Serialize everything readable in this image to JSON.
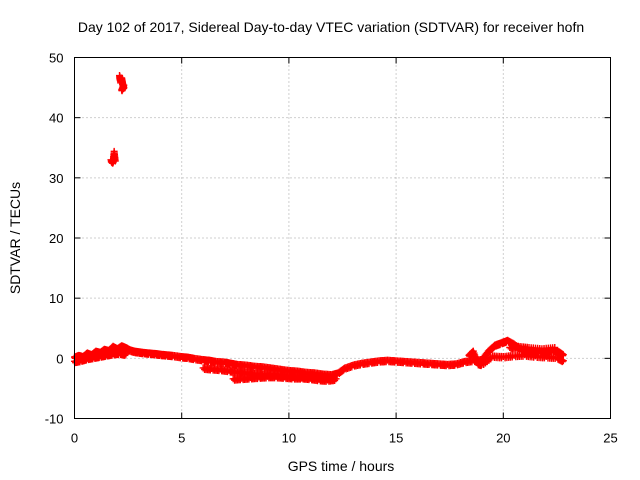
{
  "chart_data": {
    "type": "scatter",
    "title": "Day 102 of 2017, Sidereal Day-to-day VTEC variation (SDTVAR) for receiver hofn",
    "xlabel": "GPS time / hours",
    "ylabel": "SDTVAR / TECUs",
    "xlim": [
      0,
      25
    ],
    "ylim": [
      -10,
      50
    ],
    "xticks": [
      "0",
      "5",
      "10",
      "15",
      "20",
      "25"
    ],
    "yticks": [
      "-10",
      "0",
      "10",
      "20",
      "30",
      "40",
      "50"
    ],
    "grid": true,
    "marker": "+",
    "color": "#ff0000",
    "series": [
      {
        "name": "SDTVAR",
        "points": [
          [
            0.0,
            0.2
          ],
          [
            0.2,
            0.5
          ],
          [
            0.4,
            0.3
          ],
          [
            0.6,
            0.9
          ],
          [
            0.8,
            0.6
          ],
          [
            1.0,
            1.2
          ],
          [
            1.2,
            1.0
          ],
          [
            1.4,
            1.5
          ],
          [
            1.6,
            1.3
          ],
          [
            1.8,
            2.0
          ],
          [
            2.0,
            1.6
          ],
          [
            2.2,
            2.1
          ],
          [
            2.4,
            1.8
          ],
          [
            2.6,
            1.4
          ],
          [
            2.8,
            1.2
          ],
          [
            3.0,
            1.1
          ],
          [
            3.2,
            1.0
          ],
          [
            3.5,
            0.9
          ],
          [
            3.8,
            0.8
          ],
          [
            4.0,
            0.7
          ],
          [
            4.3,
            0.6
          ],
          [
            4.6,
            0.5
          ],
          [
            5.0,
            0.3
          ],
          [
            5.3,
            0.2
          ],
          [
            5.6,
            0.0
          ],
          [
            6.0,
            -0.2
          ],
          [
            6.3,
            -0.3
          ],
          [
            6.6,
            -0.5
          ],
          [
            7.0,
            -0.6
          ],
          [
            7.3,
            -0.8
          ],
          [
            7.6,
            -1.0
          ],
          [
            8.0,
            -1.1
          ],
          [
            8.4,
            -1.3
          ],
          [
            8.8,
            -1.4
          ],
          [
            9.2,
            -1.6
          ],
          [
            9.6,
            -1.8
          ],
          [
            10.0,
            -2.0
          ],
          [
            10.4,
            -2.1
          ],
          [
            10.8,
            -2.3
          ],
          [
            11.2,
            -2.4
          ],
          [
            11.6,
            -2.6
          ],
          [
            12.0,
            -2.7
          ],
          [
            12.3,
            -2.4
          ],
          [
            12.6,
            -1.6
          ],
          [
            13.0,
            -1.1
          ],
          [
            13.4,
            -0.8
          ],
          [
            13.8,
            -0.6
          ],
          [
            14.2,
            -0.4
          ],
          [
            14.6,
            -0.3
          ],
          [
            15.0,
            -0.4
          ],
          [
            15.4,
            -0.5
          ],
          [
            15.8,
            -0.6
          ],
          [
            16.2,
            -0.7
          ],
          [
            16.6,
            -0.8
          ],
          [
            17.0,
            -0.9
          ],
          [
            17.4,
            -1.0
          ],
          [
            17.8,
            -0.9
          ],
          [
            18.2,
            -0.5
          ],
          [
            18.6,
            -0.3
          ],
          [
            19.0,
            -0.2
          ],
          [
            19.3,
            1.2
          ],
          [
            19.6,
            2.2
          ],
          [
            19.9,
            2.6
          ],
          [
            20.2,
            3.0
          ],
          [
            20.5,
            2.4
          ],
          [
            20.8,
            1.6
          ],
          [
            21.1,
            1.2
          ],
          [
            21.4,
            1.0
          ],
          [
            21.7,
            1.3
          ],
          [
            22.0,
            1.0
          ],
          [
            22.3,
            1.4
          ],
          [
            22.6,
            1.1
          ],
          [
            22.8,
            0.6
          ],
          [
            6.0,
            -1.6
          ],
          [
            6.4,
            -1.7
          ],
          [
            6.8,
            -1.8
          ],
          [
            7.2,
            -2.0
          ],
          [
            7.6,
            -2.2
          ],
          [
            8.0,
            -2.3
          ],
          [
            8.4,
            -2.5
          ],
          [
            8.8,
            -2.6
          ],
          [
            9.2,
            -2.6
          ],
          [
            9.6,
            -2.8
          ],
          [
            10.0,
            -2.9
          ],
          [
            10.4,
            -3.0
          ],
          [
            10.8,
            -3.1
          ],
          [
            11.2,
            -3.0
          ],
          [
            11.6,
            -3.2
          ],
          [
            12.0,
            -3.3
          ],
          [
            7.4,
            -3.4
          ],
          [
            7.8,
            -3.3
          ],
          [
            8.2,
            -3.2
          ],
          [
            8.6,
            -3.1
          ],
          [
            9.0,
            -3.0
          ],
          [
            9.4,
            -3.0
          ],
          [
            9.8,
            -3.1
          ],
          [
            10.2,
            -3.2
          ],
          [
            10.6,
            -3.2
          ],
          [
            11.0,
            -3.3
          ],
          [
            11.4,
            -3.5
          ],
          [
            11.8,
            -3.6
          ],
          [
            12.2,
            -3.4
          ],
          [
            0.0,
            -0.5
          ],
          [
            0.3,
            -0.3
          ],
          [
            0.6,
            0.0
          ],
          [
            0.9,
            0.2
          ],
          [
            1.2,
            0.4
          ],
          [
            1.5,
            0.6
          ],
          [
            1.8,
            0.8
          ],
          [
            2.1,
            0.9
          ],
          [
            2.4,
            0.7
          ],
          [
            18.4,
            0.5
          ],
          [
            18.6,
            1.2
          ],
          [
            18.8,
            -0.8
          ],
          [
            19.0,
            -1.0
          ],
          [
            19.5,
            0.4
          ],
          [
            20.0,
            0.3
          ],
          [
            20.5,
            0.5
          ],
          [
            21.0,
            0.6
          ],
          [
            21.5,
            0.4
          ],
          [
            22.0,
            0.3
          ],
          [
            22.5,
            0.2
          ],
          [
            22.8,
            -0.4
          ],
          [
            20.3,
            1.8
          ],
          [
            20.7,
            2.0
          ],
          [
            21.2,
            1.8
          ],
          [
            21.8,
            1.6
          ],
          [
            22.4,
            1.8
          ],
          [
            1.7,
            33.0
          ],
          [
            1.8,
            32.6
          ],
          [
            1.85,
            34.4
          ],
          [
            1.9,
            32.8
          ],
          [
            2.1,
            47.0
          ],
          [
            2.15,
            46.2
          ],
          [
            2.2,
            46.6
          ],
          [
            2.25,
            45.6
          ],
          [
            2.3,
            45.0
          ],
          [
            2.2,
            44.6
          ],
          [
            2.3,
            45.4
          ],
          [
            2.15,
            45.8
          ]
        ]
      }
    ]
  }
}
